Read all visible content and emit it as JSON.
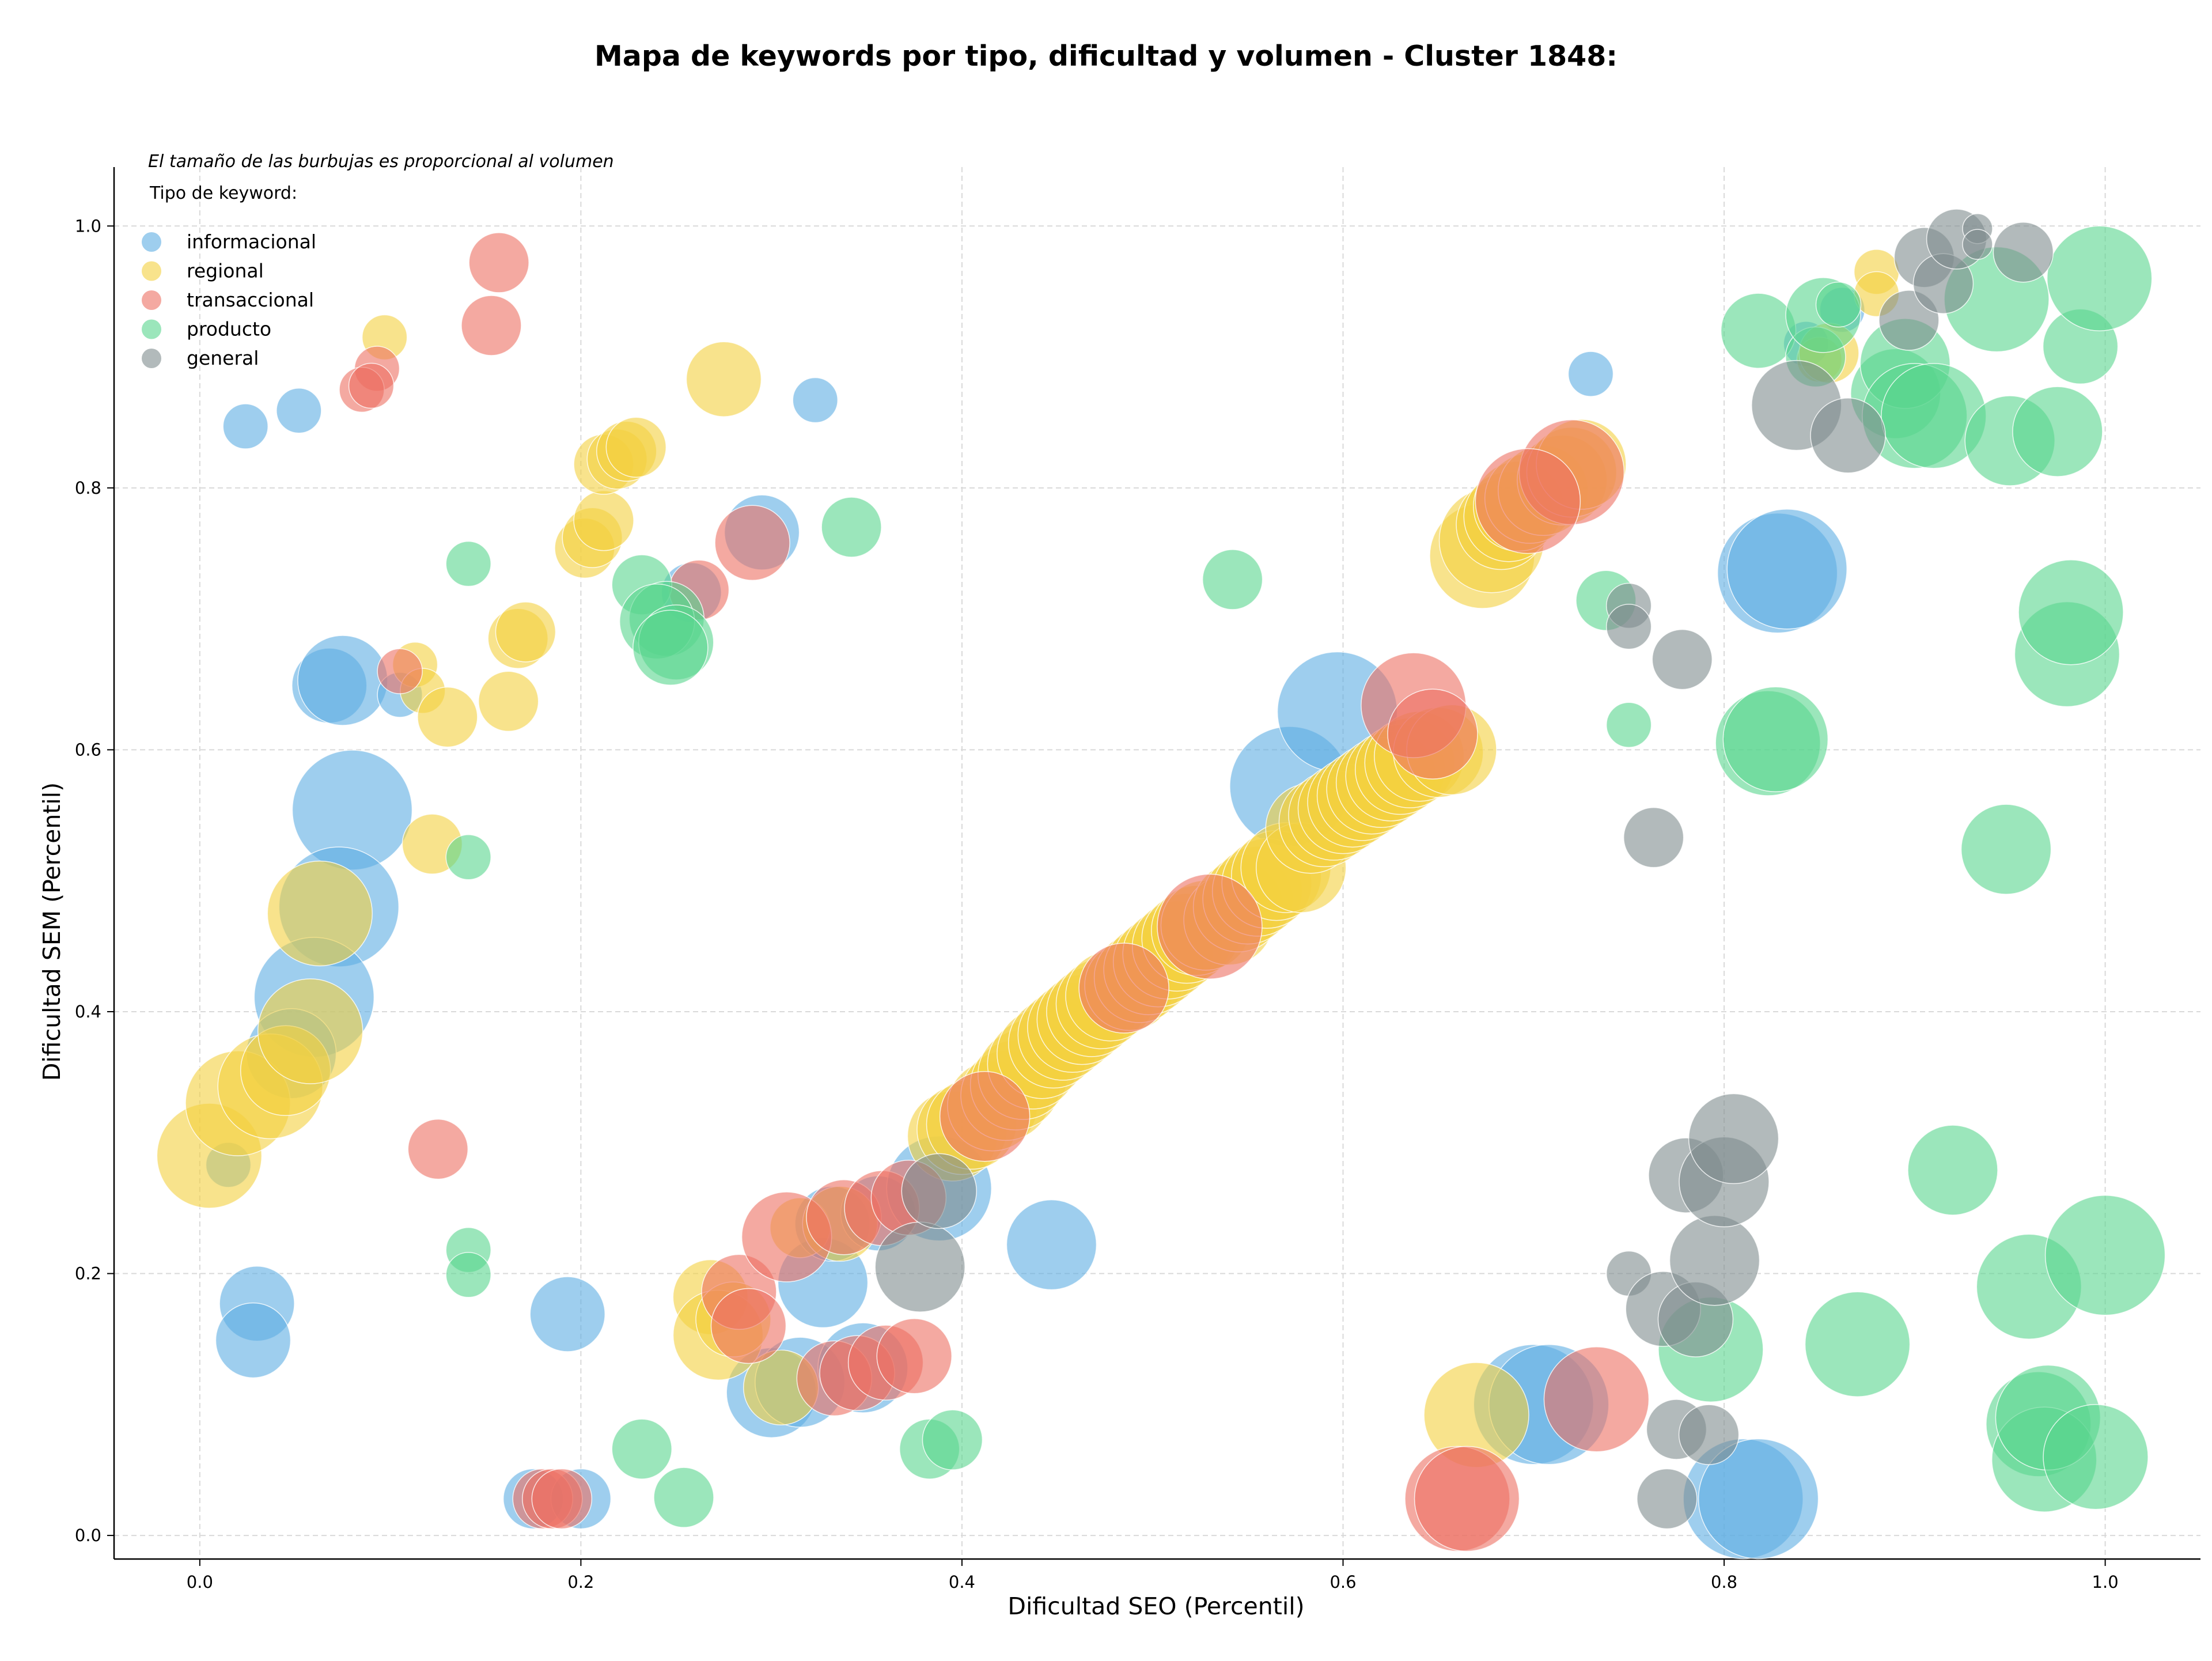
{
  "chart_data": {
    "type": "scatter",
    "title": "Mapa de keywords por tipo, dificultad y volumen - Cluster 1848:",
    "xlabel": "Dificultad SEO (Percentil)",
    "ylabel": "Dificultad SEM (Percentil)",
    "xlim": [
      -0.045,
      1.05
    ],
    "ylim": [
      -0.018,
      1.045
    ],
    "xticks": [
      0.0,
      0.2,
      0.4,
      0.6,
      0.8,
      1.0
    ],
    "yticks": [
      0.0,
      0.2,
      0.4,
      0.6,
      0.8,
      1.0
    ],
    "xtick_labels": [
      "0.0",
      "0.2",
      "0.4",
      "0.6",
      "0.8",
      "1.0"
    ],
    "ytick_labels": [
      "0.0",
      "0.2",
      "0.4",
      "0.6",
      "0.8",
      "1.0"
    ],
    "grid": true,
    "legend_placement": "top-left",
    "legend_note": "El tamaño de las burbujas es proporcional al volumen",
    "legend_title": "Tipo de keyword:",
    "series": [
      {
        "name": "informacional",
        "color": "#5DADE2",
        "points": [
          [
            0.024,
            0.847,
            3
          ],
          [
            0.052,
            0.859,
            3
          ],
          [
            0.015,
            0.283,
            3
          ],
          [
            0.03,
            0.177,
            5
          ],
          [
            0.028,
            0.149,
            5
          ],
          [
            0.068,
            0.649,
            5
          ],
          [
            0.075,
            0.653,
            6
          ],
          [
            0.08,
            0.554,
            8
          ],
          [
            0.073,
            0.48,
            8
          ],
          [
            0.06,
            0.411,
            8
          ],
          [
            0.048,
            0.368,
            6
          ],
          [
            0.105,
            0.642,
            3
          ],
          [
            0.193,
            0.169,
            5
          ],
          [
            0.175,
            0.028,
            4
          ],
          [
            0.2,
            0.028,
            4
          ],
          [
            0.295,
            0.766,
            5
          ],
          [
            0.323,
            0.867,
            3
          ],
          [
            0.258,
            0.72,
            4
          ],
          [
            0.327,
            0.193,
            6
          ],
          [
            0.3,
            0.109,
            6
          ],
          [
            0.315,
            0.117,
            6
          ],
          [
            0.332,
            0.238,
            5
          ],
          [
            0.356,
            0.246,
            5
          ],
          [
            0.348,
            0.128,
            6
          ],
          [
            0.388,
            0.265,
            7
          ],
          [
            0.447,
            0.222,
            6
          ],
          [
            0.572,
            0.572,
            8
          ],
          [
            0.597,
            0.629,
            8
          ],
          [
            0.73,
            0.887,
            3
          ],
          [
            0.7,
            0.1,
            8
          ],
          [
            0.708,
            0.1,
            8
          ],
          [
            0.828,
            0.735,
            8
          ],
          [
            0.833,
            0.738,
            8
          ],
          [
            0.81,
            0.028,
            8
          ],
          [
            0.818,
            0.028,
            8
          ],
          [
            0.843,
            0.91,
            3
          ],
          [
            0.862,
            0.936,
            3
          ]
        ]
      },
      {
        "name": "regional",
        "color": "#F4D03F",
        "points": [
          [
            0.005,
            0.29,
            7
          ],
          [
            0.02,
            0.33,
            7
          ],
          [
            0.037,
            0.343,
            7
          ],
          [
            0.045,
            0.355,
            6
          ],
          [
            0.058,
            0.385,
            7
          ],
          [
            0.063,
            0.475,
            7
          ],
          [
            0.097,
            0.915,
            3
          ],
          [
            0.113,
            0.665,
            3
          ],
          [
            0.117,
            0.645,
            3
          ],
          [
            0.13,
            0.625,
            4
          ],
          [
            0.122,
            0.528,
            4
          ],
          [
            0.162,
            0.637,
            4
          ],
          [
            0.167,
            0.685,
            4
          ],
          [
            0.171,
            0.69,
            4
          ],
          [
            0.202,
            0.754,
            4
          ],
          [
            0.206,
            0.762,
            4
          ],
          [
            0.212,
            0.775,
            4
          ],
          [
            0.212,
            0.818,
            4
          ],
          [
            0.219,
            0.822,
            4
          ],
          [
            0.224,
            0.828,
            4
          ],
          [
            0.229,
            0.831,
            4
          ],
          [
            0.275,
            0.883,
            5
          ],
          [
            0.268,
            0.182,
            5
          ],
          [
            0.272,
            0.153,
            6
          ],
          [
            0.28,
            0.165,
            5
          ],
          [
            0.305,
            0.113,
            5
          ],
          [
            0.315,
            0.235,
            4
          ],
          [
            0.336,
            0.238,
            5
          ],
          [
            0.395,
            0.305,
            6
          ],
          [
            0.4,
            0.31,
            6
          ],
          [
            0.405,
            0.314,
            6
          ],
          [
            0.416,
            0.328,
            6
          ],
          [
            0.423,
            0.336,
            6
          ],
          [
            0.428,
            0.344,
            6
          ],
          [
            0.432,
            0.352,
            6
          ],
          [
            0.437,
            0.36,
            6
          ],
          [
            0.442,
            0.368,
            6
          ],
          [
            0.448,
            0.376,
            6
          ],
          [
            0.453,
            0.382,
            6
          ],
          [
            0.458,
            0.388,
            6
          ],
          [
            0.463,
            0.394,
            6
          ],
          [
            0.468,
            0.4,
            6
          ],
          [
            0.473,
            0.406,
            6
          ],
          [
            0.478,
            0.412,
            6
          ],
          [
            0.488,
            0.42,
            6
          ],
          [
            0.493,
            0.426,
            6
          ],
          [
            0.498,
            0.432,
            6
          ],
          [
            0.503,
            0.438,
            6
          ],
          [
            0.508,
            0.444,
            6
          ],
          [
            0.513,
            0.45,
            6
          ],
          [
            0.518,
            0.456,
            6
          ],
          [
            0.523,
            0.462,
            6
          ],
          [
            0.528,
            0.466,
            6
          ],
          [
            0.54,
            0.47,
            6
          ],
          [
            0.545,
            0.48,
            6
          ],
          [
            0.55,
            0.486,
            6
          ],
          [
            0.555,
            0.492,
            6
          ],
          [
            0.56,
            0.498,
            6
          ],
          [
            0.565,
            0.504,
            6
          ],
          [
            0.57,
            0.51,
            6
          ],
          [
            0.578,
            0.51,
            6
          ],
          [
            0.583,
            0.54,
            6
          ],
          [
            0.59,
            0.545,
            6
          ],
          [
            0.595,
            0.55,
            6
          ],
          [
            0.6,
            0.555,
            6
          ],
          [
            0.605,
            0.56,
            6
          ],
          [
            0.61,
            0.565,
            6
          ],
          [
            0.615,
            0.57,
            6
          ],
          [
            0.62,
            0.575,
            6
          ],
          [
            0.625,
            0.58,
            6
          ],
          [
            0.63,
            0.585,
            6
          ],
          [
            0.635,
            0.59,
            6
          ],
          [
            0.64,
            0.595,
            6
          ],
          [
            0.65,
            0.598,
            6
          ],
          [
            0.657,
            0.6,
            6
          ],
          [
            0.67,
            0.092,
            7
          ],
          [
            0.673,
            0.748,
            7
          ],
          [
            0.678,
            0.76,
            7
          ],
          [
            0.683,
            0.772,
            6
          ],
          [
            0.687,
            0.778,
            6
          ],
          [
            0.692,
            0.786,
            6
          ],
          [
            0.698,
            0.792,
            6
          ],
          [
            0.705,
            0.798,
            6
          ],
          [
            0.715,
            0.806,
            6
          ],
          [
            0.72,
            0.812,
            6
          ],
          [
            0.725,
            0.818,
            6
          ],
          [
            0.88,
            0.965,
            3
          ],
          [
            0.88,
            0.948,
            3
          ],
          [
            0.85,
            0.898,
            3
          ],
          [
            0.855,
            0.903,
            4
          ]
        ]
      },
      {
        "name": "transaccional",
        "color": "#EC7063",
        "points": [
          [
            0.157,
            0.972,
            4
          ],
          [
            0.153,
            0.924,
            4
          ],
          [
            0.093,
            0.891,
            3
          ],
          [
            0.085,
            0.875,
            3
          ],
          [
            0.09,
            0.878,
            3
          ],
          [
            0.105,
            0.66,
            3
          ],
          [
            0.125,
            0.295,
            4
          ],
          [
            0.18,
            0.028,
            4
          ],
          [
            0.185,
            0.028,
            4
          ],
          [
            0.19,
            0.028,
            4
          ],
          [
            0.262,
            0.722,
            4
          ],
          [
            0.29,
            0.758,
            5
          ],
          [
            0.283,
            0.186,
            5
          ],
          [
            0.288,
            0.16,
            5
          ],
          [
            0.308,
            0.228,
            6
          ],
          [
            0.333,
            0.12,
            5
          ],
          [
            0.338,
            0.243,
            5
          ],
          [
            0.345,
            0.124,
            5
          ],
          [
            0.358,
            0.25,
            5
          ],
          [
            0.36,
            0.132,
            5
          ],
          [
            0.372,
            0.258,
            5
          ],
          [
            0.375,
            0.137,
            5
          ],
          [
            0.412,
            0.32,
            6
          ],
          [
            0.485,
            0.418,
            6
          ],
          [
            0.53,
            0.465,
            7
          ],
          [
            0.637,
            0.634,
            7
          ],
          [
            0.647,
            0.612,
            6
          ],
          [
            0.66,
            0.028,
            7
          ],
          [
            0.665,
            0.028,
            7
          ],
          [
            0.733,
            0.104,
            7
          ],
          [
            0.72,
            0.812,
            7
          ],
          [
            0.697,
            0.79,
            7
          ]
        ]
      },
      {
        "name": "producto",
        "color": "#58D68D",
        "points": [
          [
            0.141,
            0.742,
            3
          ],
          [
            0.141,
            0.518,
            3
          ],
          [
            0.141,
            0.218,
            3
          ],
          [
            0.141,
            0.199,
            3
          ],
          [
            0.232,
            0.726,
            4
          ],
          [
            0.245,
            0.7,
            5
          ],
          [
            0.24,
            0.698,
            5
          ],
          [
            0.25,
            0.682,
            5
          ],
          [
            0.247,
            0.678,
            5
          ],
          [
            0.232,
            0.066,
            4
          ],
          [
            0.254,
            0.029,
            4
          ],
          [
            0.342,
            0.77,
            4
          ],
          [
            0.383,
            0.066,
            4
          ],
          [
            0.395,
            0.073,
            4
          ],
          [
            0.542,
            0.73,
            4
          ],
          [
            0.738,
            0.714,
            4
          ],
          [
            0.75,
            0.619,
            3
          ],
          [
            0.818,
            0.92,
            5
          ],
          [
            0.823,
            0.605,
            7
          ],
          [
            0.827,
            0.608,
            7
          ],
          [
            0.793,
            0.142,
            7
          ],
          [
            0.848,
            0.9,
            4
          ],
          [
            0.852,
            0.932,
            5
          ],
          [
            0.86,
            0.94,
            3
          ],
          [
            0.87,
            0.146,
            7
          ],
          [
            0.89,
            0.872,
            6
          ],
          [
            0.895,
            0.895,
            6
          ],
          [
            0.9,
            0.855,
            7
          ],
          [
            0.91,
            0.855,
            7
          ],
          [
            0.92,
            0.279,
            6
          ],
          [
            0.943,
            0.944,
            7
          ],
          [
            0.948,
            0.524,
            6
          ],
          [
            0.95,
            0.836,
            6
          ],
          [
            0.96,
            0.19,
            7
          ],
          [
            0.965,
            0.085,
            7
          ],
          [
            0.968,
            0.058,
            7
          ],
          [
            0.97,
            0.09,
            7
          ],
          [
            0.975,
            0.843,
            6
          ],
          [
            0.98,
            0.673,
            7
          ],
          [
            0.982,
            0.705,
            7
          ],
          [
            0.987,
            0.908,
            5
          ],
          [
            0.995,
            0.06,
            7
          ],
          [
            0.997,
            0.96,
            7
          ],
          [
            1.0,
            0.214,
            8
          ]
        ]
      },
      {
        "name": "general",
        "color": "#7F8C8D",
        "points": [
          [
            0.378,
            0.205,
            6
          ],
          [
            0.388,
            0.263,
            5
          ],
          [
            0.75,
            0.71,
            3
          ],
          [
            0.75,
            0.694,
            3
          ],
          [
            0.75,
            0.2,
            3
          ],
          [
            0.763,
            0.533,
            4
          ],
          [
            0.77,
            0.028,
            4
          ],
          [
            0.768,
            0.173,
            5
          ],
          [
            0.775,
            0.081,
            4
          ],
          [
            0.778,
            0.669,
            4
          ],
          [
            0.78,
            0.275,
            5
          ],
          [
            0.792,
            0.077,
            4
          ],
          [
            0.785,
            0.165,
            5
          ],
          [
            0.795,
            0.21,
            6
          ],
          [
            0.8,
            0.27,
            6
          ],
          [
            0.805,
            0.303,
            6
          ],
          [
            0.838,
            0.863,
            6
          ],
          [
            0.865,
            0.84,
            5
          ],
          [
            0.897,
            0.928,
            4
          ],
          [
            0.905,
            0.976,
            4
          ],
          [
            0.915,
            0.956,
            4
          ],
          [
            0.922,
            0.99,
            4
          ],
          [
            0.933,
            0.998,
            2
          ],
          [
            0.933,
            0.986,
            2
          ],
          [
            0.957,
            0.98,
            4
          ]
        ]
      }
    ]
  }
}
